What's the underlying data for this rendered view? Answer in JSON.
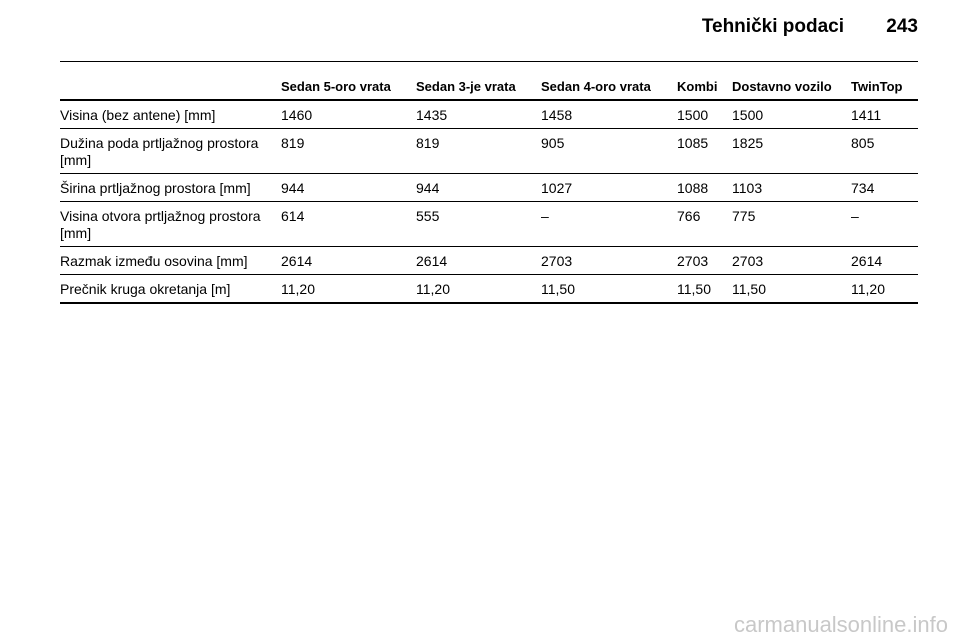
{
  "header": {
    "title": "Tehnički podaci",
    "page_number": "243"
  },
  "table": {
    "columns": [
      "Sedan 5-oro vrata",
      "Sedan 3-je vrata",
      "Sedan 4-oro vrata",
      "Kombi",
      "Dostavno vozilo",
      "TwinTop"
    ],
    "rows": [
      [
        "Visina (bez antene) [mm]",
        "1460",
        "1435",
        "1458",
        "1500",
        "1500",
        "1411"
      ],
      [
        "Dužina poda prtljažnog prostora [mm]",
        "819",
        "819",
        "905",
        "1085",
        "1825",
        "805"
      ],
      [
        "Širina prtljažnog prostora [mm]",
        "944",
        "944",
        "1027",
        "1088",
        "1103",
        "734"
      ],
      [
        "Visina otvora prtljažnog prostora [mm]",
        "614",
        "555",
        "–",
        "766",
        "775",
        "–"
      ],
      [
        "Razmak između osovina [mm]",
        "2614",
        "2614",
        "2703",
        "2703",
        "2703",
        "2614"
      ],
      [
        "Prečnik kruga okretanja [m]",
        "11,20",
        "11,20",
        "11,50",
        "11,50",
        "11,50",
        "11,20"
      ]
    ]
  },
  "watermark": "carmanualsonline.info"
}
